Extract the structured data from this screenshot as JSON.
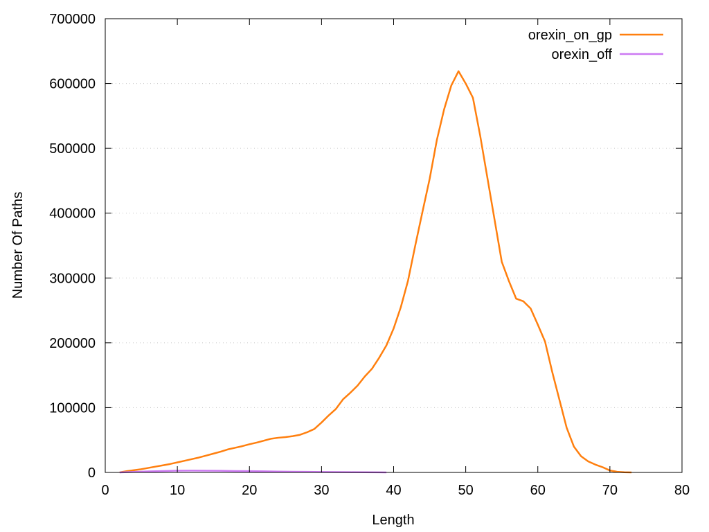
{
  "chart_data": {
    "type": "line",
    "title": "",
    "xlabel": "Length",
    "ylabel": "Number Of Paths",
    "xlim": [
      0,
      80
    ],
    "ylim": [
      0,
      700000
    ],
    "x_ticks": [
      "0",
      "10",
      "20",
      "30",
      "40",
      "50",
      "60",
      "70",
      "80"
    ],
    "y_ticks": [
      "0",
      "100000",
      "200000",
      "300000",
      "400000",
      "500000",
      "600000",
      "700000"
    ],
    "grid": "horizontal dotted",
    "legend_position": "top-right",
    "series": [
      {
        "name": "orexin_on_gp",
        "color": "#ff7f0e",
        "points": [
          [
            2,
            0
          ],
          [
            3,
            2000
          ],
          [
            4,
            3500
          ],
          [
            5,
            5000
          ],
          [
            6,
            7000
          ],
          [
            7,
            9000
          ],
          [
            8,
            11000
          ],
          [
            9,
            13000
          ],
          [
            10,
            15500
          ],
          [
            11,
            18000
          ],
          [
            12,
            20500
          ],
          [
            13,
            23000
          ],
          [
            14,
            26000
          ],
          [
            15,
            29000
          ],
          [
            16,
            32000
          ],
          [
            17,
            35500
          ],
          [
            18,
            38000
          ],
          [
            19,
            40500
          ],
          [
            20,
            43500
          ],
          [
            21,
            46000
          ],
          [
            22,
            49000
          ],
          [
            23,
            52000
          ],
          [
            24,
            53500
          ],
          [
            25,
            54500
          ],
          [
            26,
            56000
          ],
          [
            27,
            58000
          ],
          [
            28,
            62000
          ],
          [
            29,
            67000
          ],
          [
            30,
            77000
          ],
          [
            31,
            88000
          ],
          [
            32,
            98000
          ],
          [
            33,
            113000
          ],
          [
            34,
            123000
          ],
          [
            35,
            134000
          ],
          [
            36,
            148000
          ],
          [
            37,
            160000
          ],
          [
            38,
            177000
          ],
          [
            39,
            196000
          ],
          [
            40,
            222000
          ],
          [
            41,
            255000
          ],
          [
            42,
            296000
          ],
          [
            43,
            350000
          ],
          [
            44,
            402000
          ],
          [
            45,
            453000
          ],
          [
            46,
            513000
          ],
          [
            47,
            560000
          ],
          [
            48,
            597000
          ],
          [
            49,
            619000
          ],
          [
            50,
            600000
          ],
          [
            51,
            578000
          ],
          [
            52,
            520000
          ],
          [
            53,
            455000
          ],
          [
            54,
            390000
          ],
          [
            55,
            325000
          ],
          [
            56,
            295000
          ],
          [
            57,
            268000
          ],
          [
            58,
            264000
          ],
          [
            59,
            253000
          ],
          [
            60,
            228000
          ],
          [
            61,
            202000
          ],
          [
            62,
            155000
          ],
          [
            63,
            112000
          ],
          [
            64,
            69000
          ],
          [
            65,
            40000
          ],
          [
            66,
            25000
          ],
          [
            67,
            17000
          ],
          [
            68,
            12000
          ],
          [
            69,
            8000
          ],
          [
            70,
            3000
          ],
          [
            71,
            1000
          ],
          [
            72,
            300
          ],
          [
            73,
            0
          ]
        ]
      },
      {
        "name": "orexin_off",
        "color": "#cc79f2",
        "points": [
          [
            2,
            0
          ],
          [
            4,
            800
          ],
          [
            6,
            1600
          ],
          [
            8,
            2200
          ],
          [
            10,
            2700
          ],
          [
            12,
            2800
          ],
          [
            14,
            2700
          ],
          [
            16,
            2500
          ],
          [
            18,
            2200
          ],
          [
            20,
            2000
          ],
          [
            22,
            1700
          ],
          [
            24,
            1400
          ],
          [
            26,
            1100
          ],
          [
            28,
            900
          ],
          [
            30,
            700
          ],
          [
            32,
            500
          ],
          [
            34,
            350
          ],
          [
            36,
            200
          ],
          [
            38,
            100
          ],
          [
            39,
            50
          ]
        ]
      }
    ]
  }
}
